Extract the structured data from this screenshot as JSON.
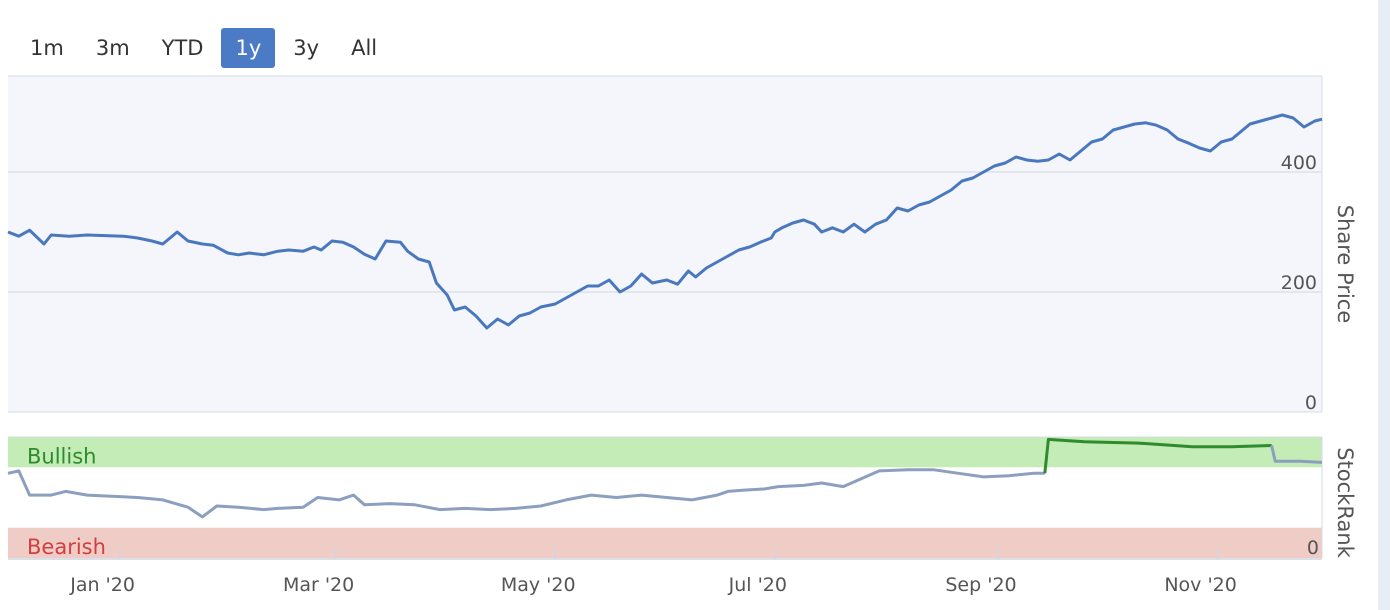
{
  "range_selector": {
    "buttons": [
      "1m",
      "3m",
      "YTD",
      "1y",
      "3y",
      "All"
    ],
    "active": "1y"
  },
  "chart_data": [
    {
      "type": "line",
      "name": "price-panel",
      "ylabel": "Share Price",
      "ylim": [
        0,
        560
      ],
      "yticks": [
        "0",
        "200",
        "400"
      ],
      "ytick_values": [
        0,
        200,
        400
      ],
      "xlim": [
        "2019-12-01",
        "2020-11-30"
      ],
      "xticks": [
        "Jan '20",
        "Mar '20",
        "May '20",
        "Jul '20",
        "Sep '20",
        "Nov '20"
      ],
      "xtick_dates": [
        "2020-01-01",
        "2020-03-01",
        "2020-05-01",
        "2020-07-01",
        "2020-09-01",
        "2020-11-01"
      ],
      "series": [
        {
          "color": "#4a78be",
          "points": [
            [
              "2019-12-01",
              300
            ],
            [
              "2019-12-04",
              293
            ],
            [
              "2019-12-07",
              303
            ],
            [
              "2019-12-11",
              280
            ],
            [
              "2019-12-13",
              295
            ],
            [
              "2019-12-18",
              293
            ],
            [
              "2019-12-23",
              295
            ],
            [
              "2020-01-02",
              293
            ],
            [
              "2020-01-06",
              290
            ],
            [
              "2020-01-10",
              285
            ],
            [
              "2020-01-13",
              280
            ],
            [
              "2020-01-17",
              300
            ],
            [
              "2020-01-20",
              285
            ],
            [
              "2020-01-24",
              280
            ],
            [
              "2020-01-27",
              278
            ],
            [
              "2020-01-31",
              265
            ],
            [
              "2020-02-03",
              262
            ],
            [
              "2020-02-06",
              265
            ],
            [
              "2020-02-10",
              262
            ],
            [
              "2020-02-14",
              268
            ],
            [
              "2020-02-17",
              270
            ],
            [
              "2020-02-21",
              268
            ],
            [
              "2020-02-24",
              275
            ],
            [
              "2020-02-26",
              270
            ],
            [
              "2020-02-29",
              285
            ],
            [
              "2020-03-03",
              283
            ],
            [
              "2020-03-06",
              275
            ],
            [
              "2020-03-09",
              263
            ],
            [
              "2020-03-12",
              255
            ],
            [
              "2020-03-15",
              285
            ],
            [
              "2020-03-19",
              283
            ],
            [
              "2020-03-21",
              268
            ],
            [
              "2020-03-24",
              255
            ],
            [
              "2020-03-27",
              250
            ],
            [
              "2020-03-29",
              215
            ],
            [
              "2020-04-01",
              195
            ],
            [
              "2020-04-03",
              170
            ],
            [
              "2020-04-06",
              175
            ],
            [
              "2020-04-09",
              160
            ],
            [
              "2020-04-12",
              140
            ],
            [
              "2020-04-15",
              155
            ],
            [
              "2020-04-18",
              145
            ],
            [
              "2020-04-21",
              160
            ],
            [
              "2020-04-24",
              165
            ],
            [
              "2020-04-27",
              175
            ],
            [
              "2020-05-01",
              180
            ],
            [
              "2020-05-04",
              190
            ],
            [
              "2020-05-07",
              200
            ],
            [
              "2020-05-10",
              210
            ],
            [
              "2020-05-13",
              210
            ],
            [
              "2020-05-16",
              220
            ],
            [
              "2020-05-19",
              200
            ],
            [
              "2020-05-22",
              210
            ],
            [
              "2020-05-25",
              230
            ],
            [
              "2020-05-28",
              215
            ],
            [
              "2020-06-01",
              220
            ],
            [
              "2020-06-04",
              213
            ],
            [
              "2020-06-07",
              235
            ],
            [
              "2020-06-09",
              225
            ],
            [
              "2020-06-12",
              240
            ],
            [
              "2020-06-15",
              250
            ],
            [
              "2020-06-18",
              260
            ],
            [
              "2020-06-21",
              270
            ],
            [
              "2020-06-24",
              275
            ],
            [
              "2020-06-27",
              283
            ],
            [
              "2020-06-30",
              290
            ],
            [
              "2020-07-01",
              300
            ],
            [
              "2020-07-03",
              307
            ],
            [
              "2020-07-06",
              315
            ],
            [
              "2020-07-09",
              320
            ],
            [
              "2020-07-12",
              313
            ],
            [
              "2020-07-14",
              300
            ],
            [
              "2020-07-17",
              307
            ],
            [
              "2020-07-20",
              300
            ],
            [
              "2020-07-23",
              313
            ],
            [
              "2020-07-26",
              300
            ],
            [
              "2020-07-29",
              313
            ],
            [
              "2020-08-01",
              320
            ],
            [
              "2020-08-04",
              340
            ],
            [
              "2020-08-07",
              335
            ],
            [
              "2020-08-10",
              345
            ],
            [
              "2020-08-13",
              350
            ],
            [
              "2020-08-16",
              360
            ],
            [
              "2020-08-19",
              370
            ],
            [
              "2020-08-22",
              385
            ],
            [
              "2020-08-25",
              390
            ],
            [
              "2020-08-28",
              400
            ],
            [
              "2020-08-31",
              410
            ],
            [
              "2020-09-03",
              415
            ],
            [
              "2020-09-06",
              425
            ],
            [
              "2020-09-09",
              420
            ],
            [
              "2020-09-12",
              418
            ],
            [
              "2020-09-15",
              420
            ],
            [
              "2020-09-18",
              430
            ],
            [
              "2020-09-21",
              420
            ],
            [
              "2020-09-24",
              435
            ],
            [
              "2020-09-27",
              450
            ],
            [
              "2020-09-30",
              455
            ],
            [
              "2020-10-03",
              470
            ],
            [
              "2020-10-06",
              475
            ],
            [
              "2020-10-09",
              480
            ],
            [
              "2020-10-12",
              482
            ],
            [
              "2020-10-15",
              478
            ],
            [
              "2020-10-18",
              470
            ],
            [
              "2020-10-21",
              455
            ],
            [
              "2020-10-24",
              448
            ],
            [
              "2020-10-27",
              440
            ],
            [
              "2020-10-30",
              435
            ],
            [
              "2020-11-02",
              450
            ],
            [
              "2020-11-05",
              455
            ],
            [
              "2020-11-08",
              470
            ],
            [
              "2020-11-10",
              480
            ],
            [
              "2020-11-13",
              485
            ],
            [
              "2020-11-16",
              490
            ],
            [
              "2020-11-19",
              495
            ],
            [
              "2020-11-22",
              490
            ],
            [
              "2020-11-25",
              475
            ],
            [
              "2020-11-28",
              485
            ],
            [
              "2020-11-30",
              488
            ]
          ]
        }
      ]
    },
    {
      "type": "line",
      "name": "stockrank-panel",
      "ylabel": "StockRank",
      "ylim": [
        0,
        100
      ],
      "yticks": [
        "0"
      ],
      "ytick_values": [
        0
      ],
      "bands": [
        {
          "label": "Bullish",
          "from": 75,
          "to": 100,
          "color": "#c3ecb6",
          "text_color": "#2e8b2e"
        },
        {
          "label": "Bearish",
          "from": 0,
          "to": 25,
          "color": "#f0ccc6",
          "text_color": "#d04040"
        }
      ],
      "series": [
        {
          "color": "#8c9fbe",
          "segments": [
            [
              "2019-12-01",
              70
            ],
            [
              "2019-12-04",
              72
            ],
            [
              "2019-12-07",
              52
            ],
            [
              "2019-12-13",
              52
            ],
            [
              "2019-12-17",
              55
            ],
            [
              "2019-12-23",
              52
            ],
            [
              "2020-01-06",
              50
            ],
            [
              "2020-01-13",
              48
            ],
            [
              "2020-01-20",
              42
            ],
            [
              "2020-01-24",
              34
            ],
            [
              "2020-01-28",
              43
            ],
            [
              "2020-02-03",
              42
            ],
            [
              "2020-02-10",
              40
            ],
            [
              "2020-02-14",
              41
            ],
            [
              "2020-02-21",
              42
            ],
            [
              "2020-02-25",
              50
            ],
            [
              "2020-03-02",
              48
            ],
            [
              "2020-03-06",
              52
            ],
            [
              "2020-03-09",
              44
            ],
            [
              "2020-03-16",
              45
            ],
            [
              "2020-03-23",
              44
            ],
            [
              "2020-03-30",
              40
            ],
            [
              "2020-04-06",
              41
            ],
            [
              "2020-04-13",
              40
            ],
            [
              "2020-04-20",
              41
            ],
            [
              "2020-04-27",
              43
            ],
            [
              "2020-05-04",
              48
            ],
            [
              "2020-05-11",
              52
            ],
            [
              "2020-05-18",
              50
            ],
            [
              "2020-05-25",
              52
            ],
            [
              "2020-06-01",
              50
            ],
            [
              "2020-06-08",
              48
            ],
            [
              "2020-06-15",
              52
            ],
            [
              "2020-06-18",
              55
            ],
            [
              "2020-06-22",
              56
            ],
            [
              "2020-06-28",
              57
            ],
            [
              "2020-07-02",
              59
            ],
            [
              "2020-07-09",
              60
            ],
            [
              "2020-07-14",
              62
            ],
            [
              "2020-07-20",
              59
            ],
            [
              "2020-07-30",
              72
            ],
            [
              "2020-08-07",
              73
            ],
            [
              "2020-08-14",
              73
            ],
            [
              "2020-08-21",
              70
            ],
            [
              "2020-08-28",
              67
            ],
            [
              "2020-09-04",
              68
            ],
            [
              "2020-09-11",
              70
            ],
            [
              "2020-09-14",
              70
            ]
          ]
        },
        {
          "color": "#2e8b2e",
          "segments": [
            [
              "2020-09-14",
              70
            ],
            [
              "2020-09-15",
              98
            ],
            [
              "2020-09-25",
              96
            ],
            [
              "2020-10-10",
              95
            ],
            [
              "2020-10-25",
              92
            ],
            [
              "2020-11-05",
              92
            ],
            [
              "2020-11-16",
              93
            ]
          ]
        },
        {
          "color": "#8c9fbe",
          "segments": [
            [
              "2020-11-16",
              93
            ],
            [
              "2020-11-17",
              80
            ],
            [
              "2020-11-24",
              80
            ],
            [
              "2020-11-30",
              79
            ]
          ]
        }
      ]
    }
  ]
}
